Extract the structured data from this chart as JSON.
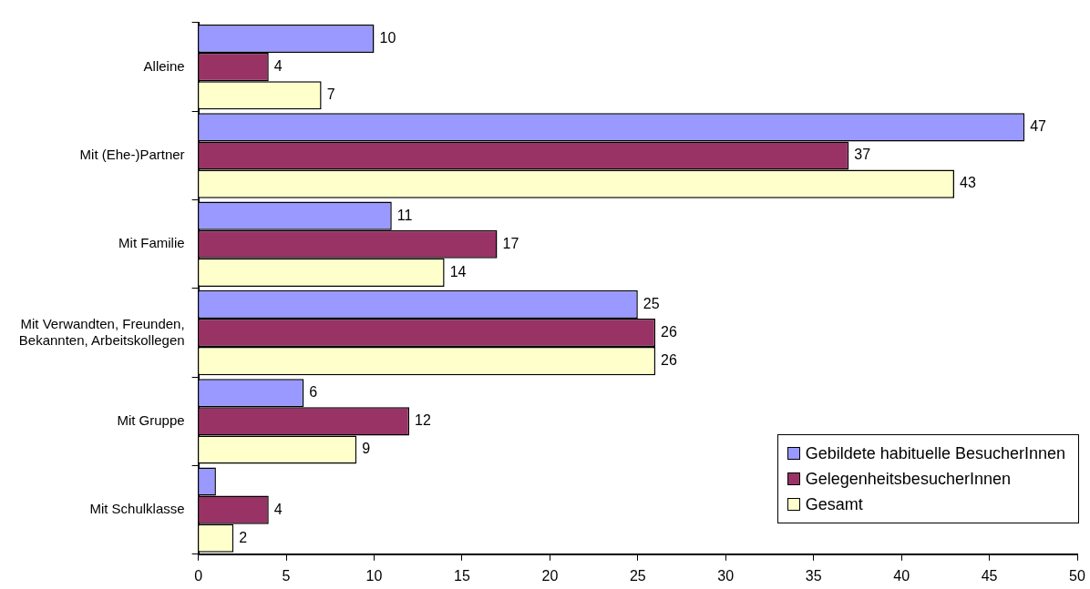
{
  "chart_data": {
    "type": "bar",
    "orientation": "horizontal",
    "categories": [
      "Alleine",
      "Mit (Ehe-)Partner",
      "Mit Familie",
      "Mit Verwandten, Freunden, Bekannten, Arbeitskollegen",
      "Mit Gruppe",
      "Mit Schulklasse"
    ],
    "series": [
      {
        "name": "Gebildete habituelle BesucherInnen",
        "color": "#9999ff",
        "values": [
          10,
          47,
          11,
          25,
          6,
          1
        ],
        "value_labels": [
          "10",
          "47",
          "11",
          "25",
          "6",
          null
        ]
      },
      {
        "name": "GelegenheitsbesucherInnen",
        "color": "#993366",
        "values": [
          4,
          37,
          17,
          26,
          12,
          4
        ],
        "value_labels": [
          "4",
          "37",
          "17",
          "26",
          "12",
          "4"
        ]
      },
      {
        "name": "Gesamt",
        "color": "#ffffcc",
        "values": [
          7,
          43,
          14,
          26,
          9,
          2
        ],
        "value_labels": [
          "7",
          "43",
          "14",
          "26",
          "9",
          "2"
        ]
      }
    ],
    "xlim": [
      0,
      50
    ],
    "xticks": [
      0,
      5,
      10,
      15,
      20,
      25,
      30,
      35,
      40,
      45,
      50
    ],
    "grid": false,
    "legend": "bottom right"
  }
}
